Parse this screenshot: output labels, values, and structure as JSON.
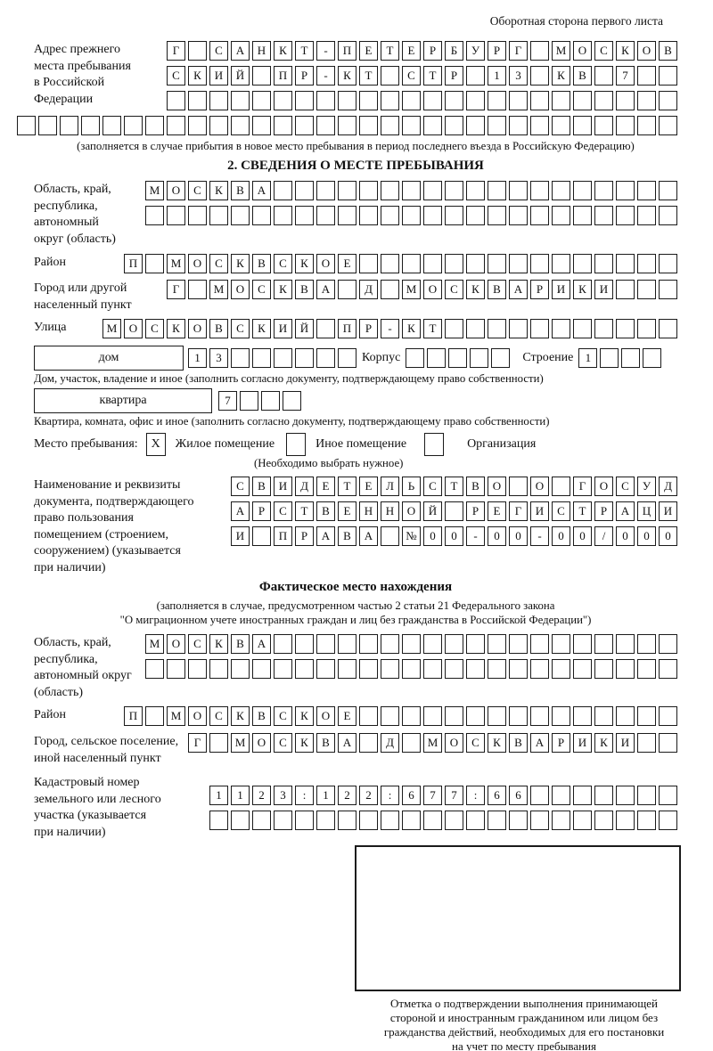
{
  "page": {
    "corner_note": "Оборотная сторона первого листа"
  },
  "prev_address": {
    "label": "Адрес прежнего\nместа пребывания\nв Российской\nФедерации",
    "rows": [
      [
        "Г",
        "",
        "С",
        "А",
        "Н",
        "К",
        "Т",
        "-",
        "П",
        "Е",
        "Т",
        "Е",
        "Р",
        "Б",
        "У",
        "Р",
        "Г",
        "",
        "М",
        "О",
        "С",
        "К",
        "О",
        "В"
      ],
      [
        "С",
        "К",
        "И",
        "Й",
        "",
        "П",
        "Р",
        "-",
        "К",
        "Т",
        "",
        "С",
        "Т",
        "Р",
        "",
        "1",
        "3",
        "",
        "К",
        "В",
        "",
        "7",
        "",
        ""
      ],
      [
        "",
        "",
        "",
        "",
        "",
        "",
        "",
        "",
        "",
        "",
        "",
        "",
        "",
        "",
        "",
        "",
        "",
        "",
        "",
        "",
        "",
        "",
        "",
        ""
      ]
    ],
    "extra_row": [
      "",
      "",
      "",
      "",
      "",
      "",
      "",
      "",
      "",
      "",
      "",
      "",
      "",
      "",
      "",
      "",
      "",
      "",
      "",
      "",
      "",
      "",
      "",
      "",
      "",
      "",
      "",
      "",
      "",
      "",
      ""
    ],
    "note": "(заполняется в случае прибытия в новое место пребывания в период последнего въезда в Российскую Федерацию)"
  },
  "section2": {
    "title": "2. СВЕДЕНИЯ О МЕСТЕ ПРЕБЫВАНИЯ",
    "oblast": {
      "label": "Область, край,\nреспублика,\nавтономный\nокруг (область)",
      "rows": [
        [
          "М",
          "О",
          "С",
          "К",
          "В",
          "А",
          "",
          "",
          "",
          "",
          "",
          "",
          "",
          "",
          "",
          "",
          "",
          "",
          "",
          "",
          "",
          "",
          "",
          "",
          ""
        ],
        [
          "",
          "",
          "",
          "",
          "",
          "",
          "",
          "",
          "",
          "",
          "",
          "",
          "",
          "",
          "",
          "",
          "",
          "",
          "",
          "",
          "",
          "",
          "",
          "",
          ""
        ]
      ]
    },
    "raion": {
      "label": "Район",
      "row": [
        "П",
        "",
        "М",
        "О",
        "С",
        "К",
        "В",
        "С",
        "К",
        "О",
        "Е",
        "",
        "",
        "",
        "",
        "",
        "",
        "",
        "",
        "",
        "",
        "",
        "",
        "",
        "",
        ""
      ]
    },
    "gorod": {
      "label": "Город или другой\nнаселенный пункт",
      "row": [
        "Г",
        "",
        "М",
        "О",
        "С",
        "К",
        "В",
        "А",
        "",
        "Д",
        "",
        "М",
        "О",
        "С",
        "К",
        "В",
        "А",
        "Р",
        "И",
        "К",
        "И",
        "",
        "",
        ""
      ]
    },
    "ulitsa": {
      "label": "Улица",
      "row": [
        "М",
        "О",
        "С",
        "К",
        "О",
        "В",
        "С",
        "К",
        "И",
        "Й",
        "",
        "П",
        "Р",
        "-",
        "К",
        "Т",
        "",
        "",
        "",
        "",
        "",
        "",
        "",
        "",
        "",
        "",
        ""
      ]
    },
    "dom": {
      "box_label": "дом",
      "cells": [
        "1",
        "3",
        "",
        "",
        "",
        "",
        "",
        ""
      ],
      "korpus_label": "Корпус",
      "korpus_cells": [
        "",
        "",
        "",
        "",
        ""
      ],
      "stroenie_label": "Строение",
      "stroenie_cells": [
        "1",
        "",
        "",
        ""
      ]
    },
    "dom_note": "Дом, участок, владение и иное (заполнить согласно документу, подтверждающему право собственности)",
    "kvartira": {
      "box_label": "квартира",
      "cells": [
        "7",
        "",
        "",
        ""
      ]
    },
    "kvartira_note": "Квартира, комната, офис и иное (заполнить согласно документу, подтверждающему право собственности)",
    "mesto": {
      "label": "Место пребывания:",
      "zhiloe_mark": "X",
      "zhiloe_label": "Жилое помещение",
      "inoe_mark": "",
      "inoe_label": "Иное помещение",
      "org_mark": "",
      "org_label": "Организация",
      "note": "(Необходимо выбрать нужное)"
    },
    "doc": {
      "label": "Наименование и реквизиты\nдокумента, подтверждающего\nправо пользования\nпомещением (строением,\nсооружением) (указывается\nпри наличии)",
      "rows": [
        [
          "С",
          "В",
          "И",
          "Д",
          "Е",
          "Т",
          "Е",
          "Л",
          "Ь",
          "С",
          "Т",
          "В",
          "О",
          "",
          "О",
          "",
          "Г",
          "О",
          "С",
          "У",
          "Д"
        ],
        [
          "А",
          "Р",
          "С",
          "Т",
          "В",
          "Е",
          "Н",
          "Н",
          "О",
          "Й",
          "",
          "Р",
          "Е",
          "Г",
          "И",
          "С",
          "Т",
          "Р",
          "А",
          "Ц",
          "И"
        ],
        [
          "И",
          "",
          "П",
          "Р",
          "А",
          "В",
          "А",
          "",
          "№",
          "0",
          "0",
          "-",
          "0",
          "0",
          "-",
          "0",
          "0",
          "/",
          "0",
          "0",
          "0"
        ]
      ]
    }
  },
  "fact": {
    "title": "Фактическое место нахождения",
    "note1": "(заполняется в случае, предусмотренном частью 2 статьи 21 Федерального закона",
    "note2": "\"О миграционном учете иностранных граждан и лиц без гражданства в Российской Федерации\")",
    "oblast": {
      "label": "Область, край,\nреспублика,\nавтономный округ\n(область)",
      "rows": [
        [
          "М",
          "О",
          "С",
          "К",
          "В",
          "А",
          "",
          "",
          "",
          "",
          "",
          "",
          "",
          "",
          "",
          "",
          "",
          "",
          "",
          "",
          "",
          "",
          "",
          "",
          ""
        ],
        [
          "",
          "",
          "",
          "",
          "",
          "",
          "",
          "",
          "",
          "",
          "",
          "",
          "",
          "",
          "",
          "",
          "",
          "",
          "",
          "",
          "",
          "",
          "",
          "",
          ""
        ]
      ]
    },
    "raion": {
      "label": "Район",
      "row": [
        "П",
        "",
        "М",
        "О",
        "С",
        "К",
        "В",
        "С",
        "К",
        "О",
        "Е",
        "",
        "",
        "",
        "",
        "",
        "",
        "",
        "",
        "",
        "",
        "",
        "",
        "",
        "",
        ""
      ]
    },
    "gorod": {
      "label": "Город, сельское поселение,\nиной населенный пункт",
      "row": [
        "Г",
        "",
        "М",
        "О",
        "С",
        "К",
        "В",
        "А",
        "",
        "Д",
        "",
        "М",
        "О",
        "С",
        "К",
        "В",
        "А",
        "Р",
        "И",
        "К",
        "И",
        "",
        ""
      ]
    },
    "kadastr": {
      "label": "Кадастровый номер\nземельного или лесного\nучастка (указывается\nпри наличии)",
      "rows": [
        [
          "1",
          "1",
          "2",
          "3",
          ":",
          "1",
          "2",
          "2",
          ":",
          "6",
          "7",
          "7",
          ":",
          "6",
          "6",
          "",
          "",
          "",
          "",
          "",
          "",
          ""
        ],
        [
          "",
          "",
          "",
          "",
          "",
          "",
          "",
          "",
          "",
          "",
          "",
          "",
          "",
          "",
          "",
          "",
          "",
          "",
          "",
          "",
          "",
          ""
        ]
      ]
    },
    "stamp_caption": "Отметка о подтверждении выполнения принимающей\nстороной и иностранным гражданином или лицом без\nгражданства действий, необходимых для его постановки\nна учет по месту пребывания"
  }
}
